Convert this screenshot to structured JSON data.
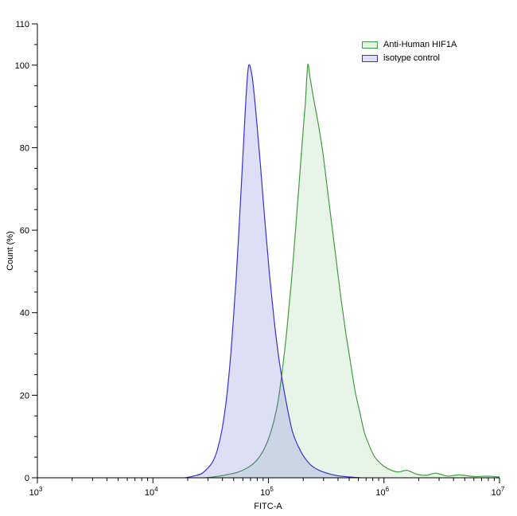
{
  "figure": {
    "background": "#ffffff"
  },
  "chart_data": {
    "type": "area",
    "title": "",
    "xlabel": "FITC-A",
    "ylabel": "Count (%)",
    "x_scale": "log10",
    "x_range_log10": [
      3,
      7
    ],
    "x_major_tick_exponents": [
      3,
      4,
      5,
      6,
      7
    ],
    "ylim": [
      0,
      110
    ],
    "y_major_ticks": [
      0,
      20,
      40,
      60,
      80,
      100,
      110
    ],
    "y_minor_step": 5,
    "grid": false,
    "legend_position": "top-right",
    "axis_color": "#000000",
    "series": [
      {
        "name": "Anti-Human HIF1A",
        "stroke": "#3f9c3f",
        "fill": "#4aa54a",
        "fill_opacity": 0.12,
        "swatch_fill": "#e7f3e7",
        "peak_x_log10": 5.34,
        "peak_y_pct": 100,
        "points": [
          [
            4.45,
            0
          ],
          [
            4.55,
            0.3
          ],
          [
            4.65,
            0.8
          ],
          [
            4.75,
            1.5
          ],
          [
            4.85,
            3
          ],
          [
            4.92,
            5
          ],
          [
            4.98,
            8
          ],
          [
            5.03,
            12
          ],
          [
            5.08,
            18
          ],
          [
            5.12,
            26
          ],
          [
            5.16,
            36
          ],
          [
            5.2,
            48
          ],
          [
            5.24,
            62
          ],
          [
            5.27,
            73
          ],
          [
            5.3,
            84
          ],
          [
            5.32,
            91
          ],
          [
            5.34,
            100
          ],
          [
            5.36,
            97
          ],
          [
            5.39,
            92
          ],
          [
            5.43,
            86
          ],
          [
            5.47,
            79
          ],
          [
            5.51,
            70
          ],
          [
            5.55,
            61
          ],
          [
            5.59,
            52
          ],
          [
            5.63,
            43
          ],
          [
            5.67,
            35
          ],
          [
            5.71,
            28
          ],
          [
            5.75,
            21
          ],
          [
            5.79,
            16
          ],
          [
            5.83,
            11
          ],
          [
            5.87,
            8
          ],
          [
            5.91,
            5.5
          ],
          [
            5.95,
            4
          ],
          [
            6.0,
            2.8
          ],
          [
            6.05,
            2
          ],
          [
            6.12,
            1.4
          ],
          [
            6.2,
            1.8
          ],
          [
            6.28,
            0.9
          ],
          [
            6.36,
            0.6
          ],
          [
            6.45,
            1.1
          ],
          [
            6.55,
            0.4
          ],
          [
            6.65,
            0.7
          ],
          [
            6.78,
            0.3
          ],
          [
            6.9,
            0.4
          ],
          [
            7.0,
            0.2
          ]
        ]
      },
      {
        "name": "isotype control",
        "stroke": "#3434cf",
        "fill": "#5b5bd6",
        "fill_opacity": 0.2,
        "swatch_fill": "#dedef6",
        "peak_x_log10": 4.83,
        "peak_y_pct": 100,
        "points": [
          [
            4.28,
            0
          ],
          [
            4.35,
            0.4
          ],
          [
            4.42,
            1
          ],
          [
            4.48,
            2.5
          ],
          [
            4.52,
            4
          ],
          [
            4.56,
            7
          ],
          [
            4.6,
            12
          ],
          [
            4.64,
            20
          ],
          [
            4.68,
            32
          ],
          [
            4.72,
            48
          ],
          [
            4.76,
            68
          ],
          [
            4.79,
            84
          ],
          [
            4.81,
            94
          ],
          [
            4.83,
            100
          ],
          [
            4.86,
            97
          ],
          [
            4.89,
            89
          ],
          [
            4.93,
            76
          ],
          [
            4.97,
            62
          ],
          [
            5.01,
            49
          ],
          [
            5.05,
            38
          ],
          [
            5.09,
            29
          ],
          [
            5.13,
            22
          ],
          [
            5.17,
            16
          ],
          [
            5.21,
            11
          ],
          [
            5.26,
            7.5
          ],
          [
            5.31,
            5
          ],
          [
            5.37,
            3
          ],
          [
            5.44,
            1.8
          ],
          [
            5.52,
            1
          ],
          [
            5.6,
            0.5
          ],
          [
            5.7,
            0.2
          ],
          [
            5.8,
            0
          ]
        ]
      }
    ]
  }
}
